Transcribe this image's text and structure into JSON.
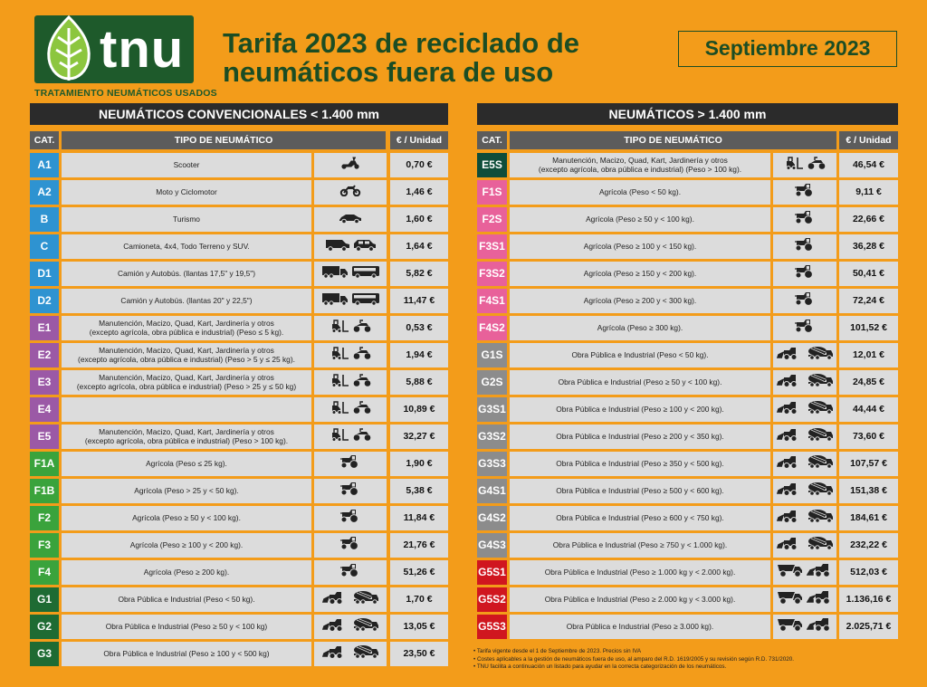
{
  "brand": {
    "logo_text": "tnu",
    "subtitle": "TRATAMIENTO NEUMÁTICOS USADOS"
  },
  "header": {
    "title": "Tarifa 2023 de reciclado de neumáticos fuera de uso",
    "date": "Septiembre 2023"
  },
  "colors": {
    "background": "#f39c1a",
    "dark_green": "#1b4d24",
    "blue": "#2e93d1",
    "purple": "#9b59a6",
    "green": "#3aa33c",
    "dark_green_cat": "#1e6b33",
    "teal_dark": "#0e4d3a",
    "pink": "#e8619a",
    "gray": "#8c8c8c",
    "red": "#d0161f"
  },
  "left_table": {
    "title": "NEUMÁTICOS CONVENCIONALES < 1.400 mm",
    "headers": {
      "cat": "CAT.",
      "type": "TIPO DE NEUMÁTICO",
      "price": "€ / Unidad"
    },
    "rows": [
      {
        "cat": "A1",
        "color": "#2e93d1",
        "desc": "Scooter",
        "icons": [
          "scooter-icon"
        ],
        "price": "0,70 €"
      },
      {
        "cat": "A2",
        "color": "#2e93d1",
        "desc": "Moto y Ciclomotor",
        "icons": [
          "motorcycle-icon"
        ],
        "price": "1,46 €"
      },
      {
        "cat": "B",
        "color": "#2e93d1",
        "desc": "Turismo",
        "icons": [
          "car-icon"
        ],
        "price": "1,60 €"
      },
      {
        "cat": "C",
        "color": "#2e93d1",
        "desc": "Camioneta, 4x4, Todo Terreno y SUV.",
        "icons": [
          "van-icon",
          "suv-icon"
        ],
        "price": "1,64 €"
      },
      {
        "cat": "D1",
        "color": "#2e93d1",
        "desc": "Camión y Autobús. (llantas 17,5\" y 19,5\")",
        "icons": [
          "truck-icon",
          "bus-icon"
        ],
        "price": "5,82 €"
      },
      {
        "cat": "D2",
        "color": "#2e93d1",
        "desc": "Camión y Autobús. (llantas 20\" y 22,5\")",
        "icons": [
          "truck-icon",
          "bus-icon"
        ],
        "price": "11,47 €"
      },
      {
        "cat": "E1",
        "color": "#9b59a6",
        "desc": "Manutención, Macizo, Quad, Kart, Jardinería y otros\n(excepto agrícola, obra pública e industrial)  (Peso ≤ 5 kg).",
        "icons": [
          "forklift-icon",
          "quad-icon"
        ],
        "price": "0,53 €"
      },
      {
        "cat": "E2",
        "color": "#9b59a6",
        "desc": "Manutención, Macizo, Quad, Kart, Jardinería y otros\n(excepto agrícola, obra pública e industrial)  (Peso > 5 y ≤ 25 kg).",
        "icons": [
          "forklift-icon",
          "quad-icon"
        ],
        "price": "1,94 €"
      },
      {
        "cat": "E3",
        "color": "#9b59a6",
        "desc": "Manutención, Macizo, Quad, Kart, Jardinería y otros\n(excepto agrícola, obra pública e industrial) (Peso > 25 y ≤ 50 kg)",
        "icons": [
          "forklift-icon",
          "quad-icon"
        ],
        "price": "5,88 €"
      },
      {
        "cat": "E4",
        "color": "#9b59a6",
        "desc": "",
        "icons": [
          "forklift-icon",
          "quad-icon"
        ],
        "price": "10,89 €"
      },
      {
        "cat": "E5",
        "color": "#9b59a6",
        "desc": "Manutención, Macizo, Quad, Kart, Jardinería y otros\n(excepto agrícola, obra pública e industrial) (Peso > 100 kg).",
        "icons": [
          "forklift-icon",
          "quad-icon"
        ],
        "price": "32,27 €"
      },
      {
        "cat": "F1A",
        "color": "#3aa33c",
        "desc": "Agrícola (Peso ≤ 25 kg).",
        "icons": [
          "tractor-icon"
        ],
        "price": "1,90 €"
      },
      {
        "cat": "F1B",
        "color": "#3aa33c",
        "desc": "Agrícola (Peso > 25 y < 50 kg).",
        "icons": [
          "tractor-icon"
        ],
        "price": "5,38 €"
      },
      {
        "cat": "F2",
        "color": "#3aa33c",
        "desc": "Agrícola (Peso ≥ 50 y < 100 kg).",
        "icons": [
          "tractor-icon"
        ],
        "price": "11,84 €"
      },
      {
        "cat": "F3",
        "color": "#3aa33c",
        "desc": "Agrícola (Peso ≥ 100 y < 200 kg).",
        "icons": [
          "tractor-icon"
        ],
        "price": "21,76 €"
      },
      {
        "cat": "F4",
        "color": "#3aa33c",
        "desc": "Agrícola (Peso ≥ 200 kg).",
        "icons": [
          "tractor-icon"
        ],
        "price": "51,26 €"
      },
      {
        "cat": "G1",
        "color": "#1e6b33",
        "desc": "Obra Pública e Industrial (Peso < 50 kg).",
        "icons": [
          "loader-icon",
          "mixer-icon"
        ],
        "price": "1,70 €"
      },
      {
        "cat": "G2",
        "color": "#1e6b33",
        "desc": "Obra Pública e Industrial (Peso ≥ 50 y < 100 kg)",
        "icons": [
          "loader-icon",
          "mixer-icon"
        ],
        "price": "13,05 €"
      },
      {
        "cat": "G3",
        "color": "#1e6b33",
        "desc": "Obra Pública e Industrial (Peso ≥ 100 y < 500 kg)",
        "icons": [
          "loader-icon",
          "mixer-icon"
        ],
        "price": "23,50 €"
      }
    ]
  },
  "right_table": {
    "title": "NEUMÁTICOS > 1.400 mm",
    "headers": {
      "cat": "CAT.",
      "type": "TIPO DE NEUMÁTICO",
      "price": "€ / Unidad"
    },
    "rows": [
      {
        "cat": "E5S",
        "color": "#0e4d3a",
        "desc": "Manutención, Macizo, Quad, Kart, Jardinería y otros\n(excepto agrícola, obra pública e industrial) (Peso > 100 kg).",
        "icons": [
          "forklift-icon",
          "quad-icon"
        ],
        "price": "46,54 €"
      },
      {
        "cat": "F1S",
        "color": "#e8619a",
        "desc": "Agrícola (Peso < 50 kg).",
        "icons": [
          "tractor-icon"
        ],
        "price": "9,11 €"
      },
      {
        "cat": "F2S",
        "color": "#e8619a",
        "desc": "Agrícola (Peso ≥ 50 y < 100 kg).",
        "icons": [
          "tractor-icon"
        ],
        "price": "22,66 €"
      },
      {
        "cat": "F3S1",
        "color": "#e8619a",
        "desc": "Agrícola (Peso ≥ 100 y < 150 kg).",
        "icons": [
          "tractor-icon"
        ],
        "price": "36,28 €"
      },
      {
        "cat": "F3S2",
        "color": "#e8619a",
        "desc": "Agrícola (Peso ≥ 150 y < 200 kg).",
        "icons": [
          "tractor-icon"
        ],
        "price": "50,41 €"
      },
      {
        "cat": "F4S1",
        "color": "#e8619a",
        "desc": "Agrícola (Peso ≥ 200 y < 300 kg).",
        "icons": [
          "tractor-icon"
        ],
        "price": "72,24 €"
      },
      {
        "cat": "F4S2",
        "color": "#e8619a",
        "desc": "Agrícola (Peso ≥ 300 kg).",
        "icons": [
          "tractor-icon"
        ],
        "price": "101,52 €"
      },
      {
        "cat": "G1S",
        "color": "#8c8c8c",
        "desc": "Obra Pública e Industrial (Peso < 50 kg).",
        "icons": [
          "loader-icon",
          "mixer-icon"
        ],
        "price": "12,01 €"
      },
      {
        "cat": "G2S",
        "color": "#8c8c8c",
        "desc": "Obra Pública e Industrial (Peso ≥ 50 y < 100 kg).",
        "icons": [
          "loader-icon",
          "mixer-icon"
        ],
        "price": "24,85 €"
      },
      {
        "cat": "G3S1",
        "color": "#8c8c8c",
        "desc": "Obra Pública e Industrial (Peso ≥ 100 y < 200 kg).",
        "icons": [
          "loader-icon",
          "mixer-icon"
        ],
        "price": "44,44 €"
      },
      {
        "cat": "G3S2",
        "color": "#8c8c8c",
        "desc": "Obra Pública e Industrial (Peso ≥ 200 y < 350 kg).",
        "icons": [
          "loader-icon",
          "mixer-icon"
        ],
        "price": "73,60 €"
      },
      {
        "cat": "G3S3",
        "color": "#8c8c8c",
        "desc": "Obra Pública e Industrial (Peso ≥ 350 y < 500 kg).",
        "icons": [
          "loader-icon",
          "mixer-icon"
        ],
        "price": "107,57 €"
      },
      {
        "cat": "G4S1",
        "color": "#8c8c8c",
        "desc": "Obra Pública e Industrial (Peso ≥ 500 y < 600 kg).",
        "icons": [
          "loader-icon",
          "mixer-icon"
        ],
        "price": "151,38 €"
      },
      {
        "cat": "G4S2",
        "color": "#8c8c8c",
        "desc": "Obra Pública e Industrial (Peso ≥ 600 y < 750 kg).",
        "icons": [
          "loader-icon",
          "mixer-icon"
        ],
        "price": "184,61 €"
      },
      {
        "cat": "G4S3",
        "color": "#8c8c8c",
        "desc": "Obra Pública e Industrial (Peso ≥ 750 y < 1.000 kg).",
        "icons": [
          "loader-icon",
          "mixer-icon"
        ],
        "price": "232,22 €"
      },
      {
        "cat": "G5S1",
        "color": "#d0161f",
        "desc": "Obra Pública e Industrial (Peso ≥ 1.000 kg y < 2.000 kg).",
        "icons": [
          "dumper-icon",
          "wheel-loader-icon"
        ],
        "price": "512,03 €"
      },
      {
        "cat": "G5S2",
        "color": "#d0161f",
        "desc": "Obra Pública e Industrial (Peso ≥ 2.000 kg y < 3.000 kg).",
        "icons": [
          "dumper-icon",
          "wheel-loader-icon"
        ],
        "price": "1.136,16 €"
      },
      {
        "cat": "G5S3",
        "color": "#d0161f",
        "desc": "Obra Pública e Industrial (Peso ≥ 3.000 kg).",
        "icons": [
          "dumper-icon",
          "wheel-loader-icon"
        ],
        "price": "2.025,71 €"
      }
    ]
  },
  "notes": [
    "• Tarifa vigente desde el 1 de Septiembre de 2023. Precios sin IVA",
    "• Costes aplicables a la gestión de neumáticos fuera de uso, al amparo del R.D. 1619/2005 y su revisión según R.D. 731/2020.",
    "• TNU facilita a continuación un listado para ayudar en la correcta categorización de los neumáticos."
  ]
}
